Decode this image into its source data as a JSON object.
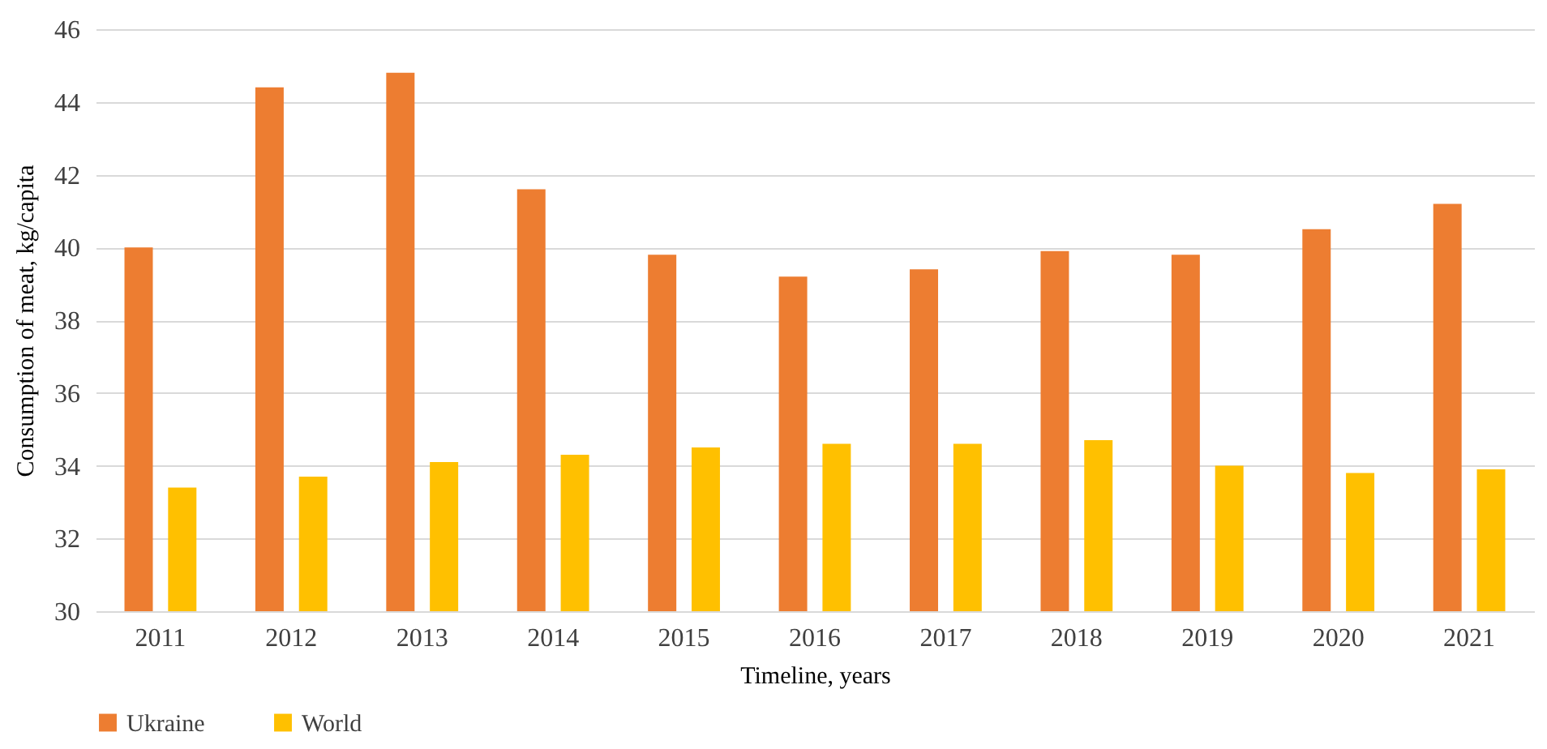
{
  "chart_data": {
    "type": "bar",
    "xlabel": "Timeline, years",
    "ylabel": "Consumption of meat, kg/capita",
    "categories": [
      "2011",
      "2012",
      "2013",
      "2014",
      "2015",
      "2016",
      "2017",
      "2018",
      "2019",
      "2020",
      "2021"
    ],
    "series": [
      {
        "name": "Ukraine",
        "color": "#ed7d31",
        "values": [
          40.0,
          44.4,
          44.8,
          41.6,
          39.8,
          39.2,
          39.4,
          39.9,
          39.8,
          40.5,
          41.2
        ]
      },
      {
        "name": "World",
        "color": "#ffc000",
        "values": [
          33.4,
          33.7,
          34.1,
          34.3,
          34.5,
          34.6,
          34.6,
          34.7,
          34.0,
          33.8,
          33.9
        ]
      }
    ],
    "ylim": [
      30,
      46
    ],
    "yticks": [
      30,
      32,
      34,
      36,
      38,
      40,
      42,
      44,
      46
    ],
    "grid": "y",
    "legend": "bottom"
  }
}
